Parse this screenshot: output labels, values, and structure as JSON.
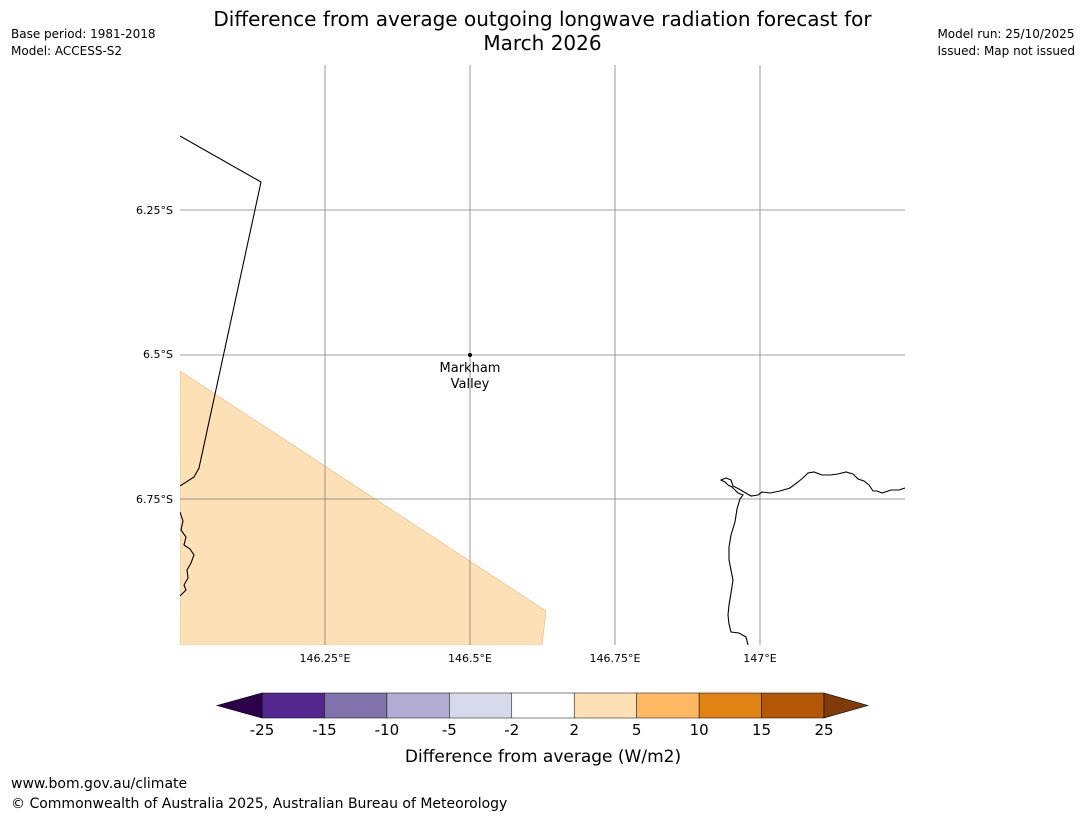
{
  "header": {
    "title_line1": "Difference from average outgoing longwave radiation forecast for",
    "title_line2": "March 2026",
    "base_period": "Base period: 1981-2018",
    "model": "Model: ACCESS-S2",
    "model_run": "Model run: 25/10/2025",
    "issued": "Issued: Map not issued"
  },
  "map": {
    "lat_labels": [
      "6.25°S",
      "6.5°S",
      "6.75°S"
    ],
    "lon_labels": [
      "146.25°E",
      "146.5°E",
      "146.75°E",
      "147°E"
    ],
    "place": {
      "name_line1": "Markham",
      "name_line2": "Valley"
    },
    "anomaly_fill_color": "#fde0b6",
    "grid_color": "#808080"
  },
  "colorbar": {
    "label": "Difference from average (W/m2)",
    "ticks": [
      "-25",
      "-15",
      "-10",
      "-5",
      "-2",
      "2",
      "5",
      "10",
      "15",
      "25"
    ],
    "colors": [
      "#54278f",
      "#8073ac",
      "#b2abd2",
      "#d8daeb",
      "#ffffff",
      "#fee0b6",
      "#fdb863",
      "#e08214",
      "#b35806"
    ],
    "extend_low_color": "#2d004b",
    "extend_high_color": "#7f3b08"
  },
  "footer": {
    "url": "www.bom.gov.au/climate",
    "copyright": "© Commonwealth of Australia 2025, Australian Bureau of Meteorology"
  }
}
